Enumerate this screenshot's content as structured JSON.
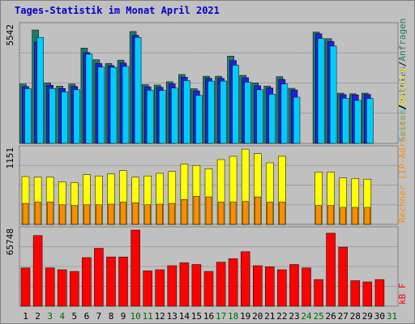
{
  "title": "Tages-Statistik im Monat April 2021",
  "colors": {
    "background": "#c0c0c0",
    "panel": "#c0c0c0",
    "grid": "#808080",
    "anfragen": "#1e7a64",
    "dateien": "#2020e0",
    "seiten": "#00ccff",
    "rechner": "#ffff00",
    "besuche": "#ff8c00",
    "kbf": "#ff0000",
    "weekday_label": "#000000",
    "weekend_label": "#006600",
    "title": "#0000cc"
  },
  "chart_data": [
    {
      "type": "bar",
      "panel": "top",
      "ymax_label": "5542",
      "ylim": [
        0,
        5542
      ],
      "categories": [
        "1",
        "2",
        "3",
        "4",
        "5",
        "6",
        "7",
        "8",
        "9",
        "10",
        "11",
        "12",
        "13",
        "14",
        "15",
        "16",
        "17",
        "18",
        "19",
        "20",
        "21",
        "22",
        "23",
        "24",
        "25",
        "26",
        "27",
        "28",
        "29",
        "30",
        "31"
      ],
      "legend": [
        {
          "label": "Anfragen",
          "color": "#1e7a64"
        },
        {
          "label": "/",
          "color": "#000000"
        },
        {
          "label": "Dateien",
          "color": "#2020e0"
        },
        {
          "label": "/",
          "color": "#000000"
        },
        {
          "label": "Seiten",
          "color": "#00ccff"
        }
      ],
      "series": [
        {
          "name": "Anfragen",
          "values": [
            2800,
            5350,
            2850,
            2700,
            2800,
            4500,
            3950,
            3770,
            3930,
            5280,
            2770,
            2750,
            2910,
            3250,
            2580,
            3170,
            3170,
            4120,
            3210,
            2850,
            2700,
            3150,
            2600,
            0,
            5250,
            4940,
            2370,
            2340,
            2370,
            0,
            0
          ]
        },
        {
          "name": "Dateien",
          "values": [
            2680,
            4780,
            2740,
            2590,
            2690,
            4290,
            3770,
            3670,
            3790,
            5100,
            2670,
            2650,
            2810,
            3120,
            2480,
            3070,
            3070,
            3910,
            3100,
            2720,
            2620,
            3020,
            2520,
            0,
            5170,
            4810,
            2300,
            2290,
            2310,
            0,
            0
          ]
        },
        {
          "name": "Seiten",
          "values": [
            2580,
            5000,
            2590,
            2430,
            2530,
            4210,
            3600,
            3590,
            3630,
            5000,
            2510,
            2500,
            2610,
            2960,
            2270,
            2940,
            2940,
            3690,
            2890,
            2530,
            2320,
            2800,
            2180,
            0,
            4950,
            4590,
            2130,
            2030,
            2120,
            0,
            0
          ]
        }
      ]
    },
    {
      "type": "bar",
      "panel": "middle",
      "ymax_label": "1151",
      "ylim": [
        0,
        1151
      ],
      "categories": [
        "1",
        "2",
        "3",
        "4",
        "5",
        "6",
        "7",
        "8",
        "9",
        "10",
        "11",
        "12",
        "13",
        "14",
        "15",
        "16",
        "17",
        "18",
        "19",
        "20",
        "21",
        "22",
        "23",
        "24",
        "25",
        "26",
        "27",
        "28",
        "29",
        "30",
        "31"
      ],
      "legend": [
        {
          "label": "Rechner (IP-Adressen)",
          "color": "#ff8c00"
        },
        {
          "label": "/",
          "color": "#000000"
        },
        {
          "label": "Besuche",
          "color": "#ffff00"
        }
      ],
      "series": [
        {
          "name": "Besuche",
          "values": [
            730,
            720,
            720,
            650,
            640,
            760,
            740,
            770,
            820,
            720,
            740,
            780,
            810,
            920,
            900,
            850,
            990,
            1040,
            1150,
            1080,
            940,
            1040,
            0,
            0,
            800,
            800,
            710,
            700,
            690,
            0,
            0
          ]
        },
        {
          "name": "Rechner (IP-Adressen)",
          "values": [
            320,
            340,
            340,
            300,
            290,
            300,
            300,
            310,
            340,
            330,
            300,
            310,
            320,
            380,
            430,
            420,
            340,
            340,
            350,
            420,
            340,
            340,
            0,
            0,
            290,
            290,
            260,
            260,
            260,
            0,
            0
          ]
        }
      ]
    },
    {
      "type": "bar",
      "panel": "bottom",
      "ymax_label": "65748",
      "ylim": [
        0,
        65748
      ],
      "categories": [
        "1",
        "2",
        "3",
        "4",
        "5",
        "6",
        "7",
        "8",
        "9",
        "10",
        "11",
        "12",
        "13",
        "14",
        "15",
        "16",
        "17",
        "18",
        "19",
        "20",
        "21",
        "22",
        "23",
        "24",
        "25",
        "26",
        "27",
        "28",
        "29",
        "30",
        "31"
      ],
      "legend": [
        {
          "label": "kB F",
          "color": "#ff0000"
        }
      ],
      "series": [
        {
          "name": "kB F",
          "values": [
            33000,
            61000,
            33000,
            31500,
            30000,
            42000,
            50000,
            42500,
            42500,
            65748,
            30500,
            31500,
            35000,
            37500,
            36000,
            30000,
            38000,
            41000,
            47000,
            35000,
            34000,
            31500,
            36000,
            33000,
            23000,
            63000,
            51000,
            22000,
            21000,
            23000,
            0
          ]
        }
      ]
    }
  ],
  "x_axis": {
    "days": [
      "1",
      "2",
      "3",
      "4",
      "5",
      "6",
      "7",
      "8",
      "9",
      "10",
      "11",
      "12",
      "13",
      "14",
      "15",
      "16",
      "17",
      "18",
      "19",
      "20",
      "21",
      "22",
      "23",
      "24",
      "25",
      "26",
      "27",
      "28",
      "29",
      "30",
      "31"
    ],
    "weekend": [
      false,
      false,
      true,
      true,
      false,
      false,
      false,
      false,
      false,
      true,
      true,
      false,
      false,
      false,
      false,
      false,
      true,
      true,
      false,
      false,
      false,
      false,
      false,
      true,
      true,
      false,
      false,
      false,
      false,
      false,
      true
    ]
  }
}
